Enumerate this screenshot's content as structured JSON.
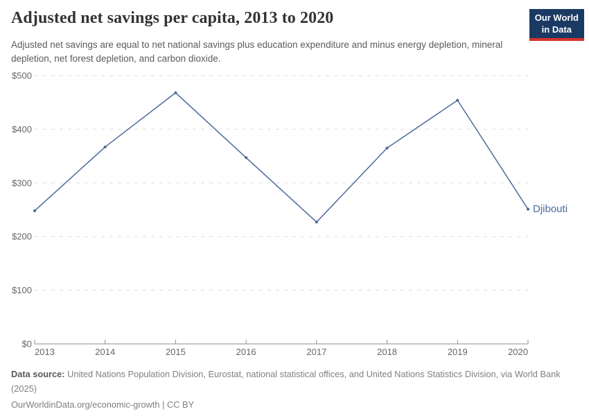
{
  "header": {
    "title": "Adjusted net savings per capita, 2013 to 2020",
    "subtitle": "Adjusted net savings are equal to net national savings plus education expenditure and minus energy depletion, mineral depletion, net forest depletion, and carbon dioxide.",
    "logo": {
      "line1": "Our World",
      "line2": "in Data",
      "bg_color": "#1b3a63",
      "accent_color": "#d7332b"
    }
  },
  "chart_data": {
    "type": "line",
    "title": "Adjusted net savings per capita, 2013 to 2020",
    "x": [
      2013,
      2014,
      2015,
      2016,
      2017,
      2018,
      2019,
      2020
    ],
    "xtick_labels": [
      "2013",
      "2014",
      "2015",
      "2016",
      "2017",
      "2018",
      "2019",
      "2020"
    ],
    "series": [
      {
        "name": "Djibouti",
        "values": [
          248,
          367,
          468,
          347,
          227,
          365,
          454,
          251
        ],
        "color": "#4c6a9c"
      }
    ],
    "ylim": [
      0,
      500
    ],
    "yticks": [
      {
        "value": 0,
        "label": "$0"
      },
      {
        "value": 100,
        "label": "$100"
      },
      {
        "value": 200,
        "label": "$200"
      },
      {
        "value": 300,
        "label": "$300"
      },
      {
        "value": 400,
        "label": "$400"
      },
      {
        "value": 500,
        "label": "$500"
      }
    ],
    "xlabel": "",
    "ylabel": "",
    "grid": "horizontal-dashed",
    "legend_position": "line-end-label",
    "colors": {
      "line": "#4c6a9c",
      "gridline": "#dcdcdc",
      "axis": "#8f8f8f",
      "tick_text": "#666666"
    }
  },
  "footer": {
    "datasource_label": "Data source:",
    "datasource_text": " United Nations Population Division, Eurostat, national statistical offices, and United Nations Statistics Division, via World Bank (2025)",
    "license_text": "OurWorldinData.org/economic-growth | CC BY"
  }
}
